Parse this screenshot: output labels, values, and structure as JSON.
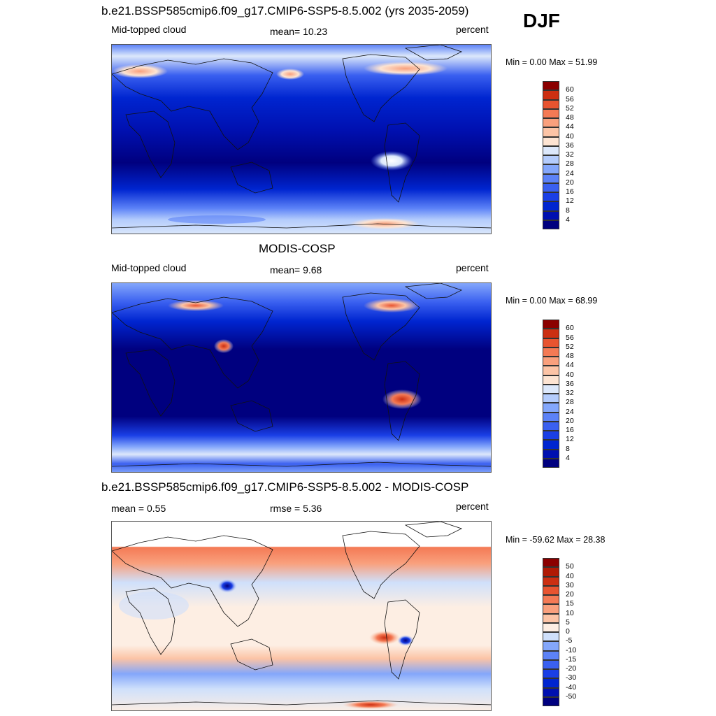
{
  "season": "DJF",
  "panels": [
    {
      "title": "b.e21.BSSP585cmip6.f09_g17.CMIP6-SSP5-8.5.002 (yrs 2035-2059)",
      "left_label": "Mid-topped cloud",
      "center_label": "mean=  10.23",
      "right_label": "percent",
      "minmax": "Min =   0.00 Max =  51.99"
    },
    {
      "title": "MODIS-COSP",
      "left_label": "Mid-topped cloud",
      "center_label": "mean=   9.68",
      "right_label": "percent",
      "minmax": "Min =   0.00 Max =  68.99"
    },
    {
      "title": "b.e21.BSSP585cmip6.f09_g17.CMIP6-SSP5-8.5.002 - MODIS-COSP",
      "left_label": "mean =   0.55",
      "center_label": "rmse =   5.36",
      "right_label": "percent",
      "minmax": "Min = -59.62 Max =  28.38"
    }
  ],
  "colorbars": {
    "abs_levels": [
      "4",
      "8",
      "12",
      "16",
      "20",
      "24",
      "28",
      "32",
      "36",
      "40",
      "44",
      "48",
      "52",
      "56",
      "60"
    ],
    "abs_colors": [
      "#00007f",
      "#0010b0",
      "#0025d0",
      "#1a3fe6",
      "#3a60f0",
      "#5c82f7",
      "#84a7fb",
      "#b4ccfc",
      "#dce8fb",
      "#fde4d2",
      "#fcc4a6",
      "#f9a07d",
      "#f47a55",
      "#e85430",
      "#cc2f12",
      "#8b0000"
    ],
    "diff_levels": [
      "-50",
      "-40",
      "-30",
      "-20",
      "-15",
      "-10",
      "-5",
      "0",
      "5",
      "10",
      "15",
      "20",
      "30",
      "40",
      "50"
    ],
    "diff_colors": [
      "#00007f",
      "#0010b0",
      "#0025d0",
      "#1a3fe6",
      "#3a60f0",
      "#5c82f7",
      "#84a7fb",
      "#cfe0fb",
      "#fdeee3",
      "#fcc4a6",
      "#f9a07d",
      "#f47a55",
      "#e85430",
      "#cc2f12",
      "#b01a05",
      "#8b0000"
    ]
  }
}
